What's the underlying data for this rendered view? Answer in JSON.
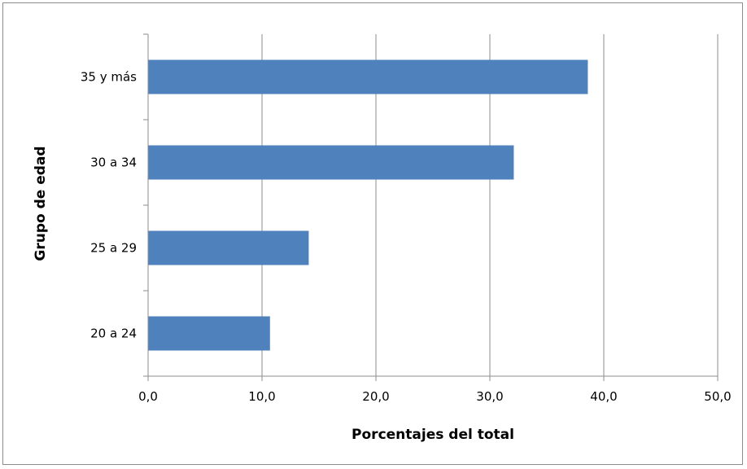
{
  "chart_data": {
    "type": "bar",
    "orientation": "horizontal",
    "categories": [
      "20 a 24",
      "25 a 29",
      "30 a 34",
      "35 y más"
    ],
    "values": [
      10.7,
      14.1,
      32.1,
      38.6
    ],
    "xlabel": "Porcentajes del total",
    "ylabel": "Grupo de edad",
    "xlim": [
      0,
      50
    ],
    "xticks": [
      "0,0",
      "10,0",
      "20,0",
      "30,0",
      "40,0",
      "50,0"
    ],
    "xtick_values": [
      0,
      10,
      20,
      30,
      40,
      50
    ],
    "grid": "vertical",
    "legend": "none",
    "bar_color": "#4f81bd"
  }
}
